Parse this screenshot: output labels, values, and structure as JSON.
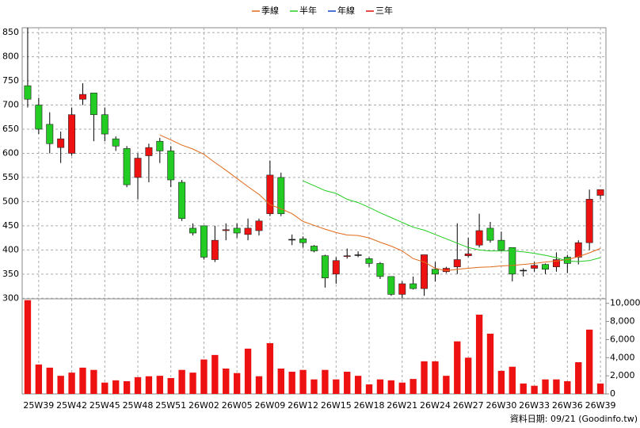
{
  "chart_data": {
    "type": "candlestick",
    "legend_position": "top",
    "grid": true,
    "categories": [
      null,
      "25W39",
      null,
      null,
      "25W42",
      null,
      null,
      "25W45",
      null,
      null,
      "25W48",
      null,
      null,
      "25W51",
      null,
      null,
      "26W02",
      null,
      null,
      "26W05",
      null,
      null,
      "26W09",
      null,
      null,
      "26W12",
      null,
      null,
      "26W15",
      null,
      null,
      "26W18",
      null,
      null,
      "26W21",
      null,
      null,
      "26W24",
      null,
      null,
      "26W27",
      null,
      null,
      "26W30",
      null,
      null,
      "26W33",
      null,
      null,
      "26W36",
      null,
      null,
      "26W39"
    ],
    "open": [
      740,
      700,
      660,
      612,
      600,
      712,
      725,
      680,
      630,
      610,
      550,
      595,
      625,
      605,
      540,
      445,
      450,
      380,
      440,
      445,
      432,
      440,
      475,
      550,
      422,
      423,
      408,
      388,
      350,
      387,
      390,
      382,
      372,
      345,
      308,
      330,
      320,
      360,
      355,
      365,
      388,
      410,
      445,
      420,
      405,
      358,
      362,
      370,
      365,
      385,
      385,
      415,
      513
    ],
    "close": [
      712,
      650,
      620,
      630,
      680,
      722,
      680,
      640,
      615,
      535,
      590,
      612,
      605,
      545,
      465,
      435,
      385,
      420,
      442,
      435,
      445,
      460,
      555,
      475,
      422,
      415,
      398,
      342,
      378,
      388,
      390,
      372,
      345,
      308,
      330,
      320,
      390,
      350,
      362,
      380,
      392,
      440,
      420,
      400,
      350,
      358,
      368,
      360,
      380,
      372,
      415,
      505,
      525
    ],
    "high": [
      860,
      715,
      685,
      645,
      695,
      745,
      725,
      695,
      635,
      615,
      600,
      620,
      632,
      615,
      545,
      455,
      450,
      450,
      455,
      455,
      465,
      465,
      585,
      560,
      432,
      428,
      410,
      390,
      385,
      403,
      397,
      385,
      375,
      345,
      335,
      345,
      390,
      375,
      365,
      455,
      425,
      475,
      458,
      438,
      405,
      362,
      375,
      372,
      395,
      390,
      420,
      525,
      525
    ],
    "low": [
      695,
      640,
      600,
      580,
      595,
      700,
      625,
      625,
      605,
      530,
      505,
      540,
      580,
      530,
      460,
      430,
      380,
      375,
      420,
      425,
      420,
      430,
      470,
      470,
      410,
      405,
      395,
      322,
      330,
      382,
      385,
      365,
      340,
      305,
      300,
      318,
      305,
      335,
      352,
      350,
      385,
      405,
      415,
      398,
      335,
      345,
      355,
      350,
      355,
      352,
      370,
      400,
      505
    ],
    "up_color": "#ee1111",
    "down_color": "#22cc22",
    "flat_color": "#000000",
    "series": [
      {
        "name": "季線",
        "color": "#e06a1a",
        "values": [
          null,
          null,
          null,
          null,
          null,
          null,
          null,
          null,
          null,
          null,
          null,
          null,
          638,
          628,
          617,
          609,
          598,
          581,
          565,
          548,
          531,
          515,
          494,
          485,
          475,
          459,
          451,
          443,
          436,
          431,
          430,
          425,
          416,
          408,
          398,
          382,
          375,
          362,
          357,
          360,
          362,
          364,
          365,
          367,
          368,
          370,
          372,
          375,
          377,
          380,
          386,
          394,
          403
        ]
      },
      {
        "name": "半年",
        "color": "#22cc22",
        "values": [
          null,
          null,
          null,
          null,
          null,
          null,
          null,
          null,
          null,
          null,
          null,
          null,
          null,
          null,
          null,
          null,
          null,
          null,
          null,
          null,
          null,
          null,
          null,
          null,
          null,
          543,
          533,
          523,
          517,
          505,
          498,
          488,
          477,
          467,
          457,
          447,
          441,
          432,
          423,
          414,
          405,
          400,
          398,
          398,
          398,
          396,
          393,
          389,
          384,
          377,
          376,
          378,
          384
        ]
      },
      {
        "name": "年線",
        "color": "#1144cc",
        "values": [
          null,
          null,
          null,
          null,
          null,
          null,
          null,
          null,
          null,
          null,
          null,
          null,
          null,
          null,
          null,
          null,
          null,
          null,
          null,
          null,
          null,
          null,
          null,
          null,
          null,
          null,
          null,
          null,
          null,
          null,
          null,
          null,
          null,
          null,
          null,
          null,
          null,
          null,
          null,
          null,
          null,
          null,
          null,
          null,
          null,
          null,
          null,
          null,
          null,
          null,
          null,
          null,
          null
        ]
      },
      {
        "name": "三年",
        "color": "#dd1111",
        "values": [
          null,
          null,
          null,
          null,
          null,
          null,
          null,
          null,
          null,
          null,
          null,
          null,
          null,
          null,
          null,
          null,
          null,
          null,
          null,
          null,
          null,
          null,
          null,
          null,
          null,
          null,
          null,
          null,
          null,
          null,
          null,
          null,
          null,
          null,
          null,
          null,
          null,
          null,
          null,
          null,
          null,
          null,
          null,
          null,
          null,
          null,
          null,
          null,
          null,
          null,
          null,
          null,
          null
        ]
      }
    ],
    "ylim": [
      289,
      860
    ],
    "yticks": [
      300,
      350,
      400,
      450,
      500,
      550,
      600,
      650,
      700,
      750,
      800,
      850
    ],
    "volume": {
      "color": "#ee1111",
      "values": [
        10350,
        3250,
        2900,
        2000,
        2350,
        2900,
        2650,
        1250,
        1500,
        1400,
        1850,
        1950,
        2000,
        1750,
        2650,
        2350,
        3800,
        4300,
        2800,
        2300,
        5000,
        1950,
        5600,
        2800,
        2450,
        2650,
        1600,
        2650,
        1600,
        2450,
        2000,
        1050,
        1600,
        1500,
        1250,
        1650,
        3600,
        3600,
        2000,
        5800,
        4000,
        8750,
        6650,
        2550,
        3000,
        1150,
        900,
        1600,
        1600,
        1400,
        3500,
        7100,
        1150
      ],
      "ylim": [
        0,
        10500
      ],
      "yticks": [
        0,
        {
          "value": 2000,
          "label": "2,000"
        },
        {
          "value": 4000,
          "label": "4,000"
        },
        {
          "value": 6000,
          "label": "6,000"
        },
        {
          "value": 8000,
          "label": "8,000"
        },
        {
          "value": 10000,
          "label": "10,000"
        }
      ]
    },
    "footer": "資料日期: 09/21 (Goodinfo.tw)"
  }
}
